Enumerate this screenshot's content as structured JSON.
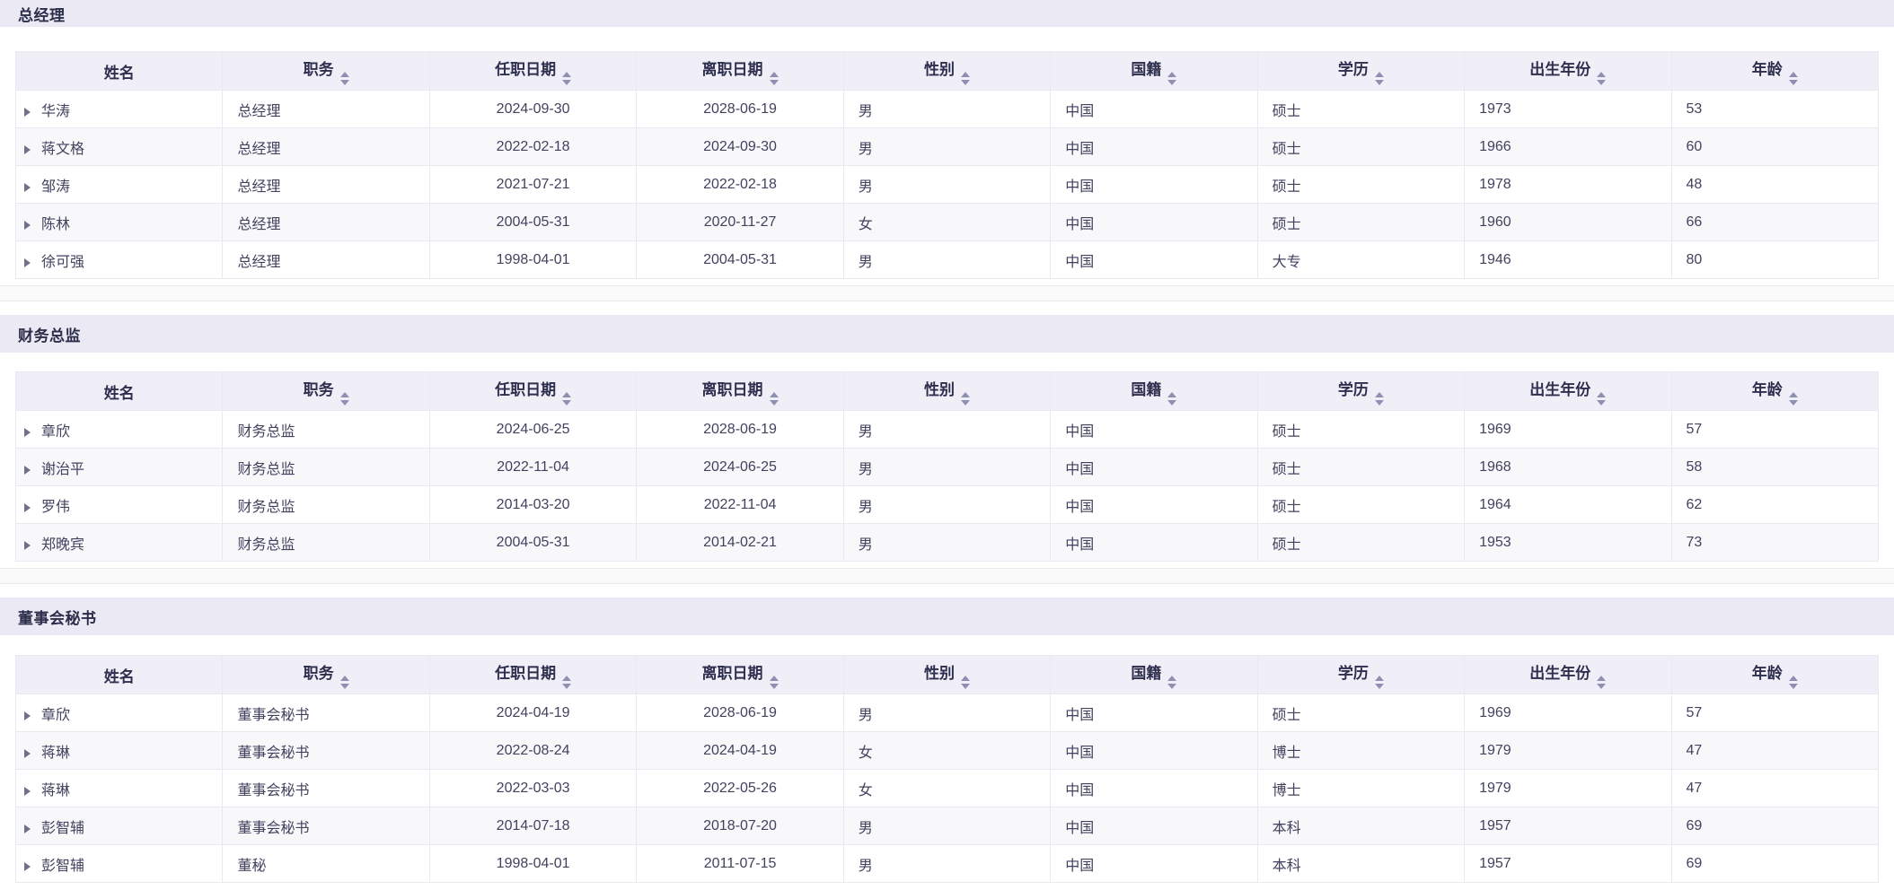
{
  "colors": {
    "section_band_bg": "#ebeaf4",
    "header_bg": "#f0eff8",
    "stripe_bg": "#f8f8fb",
    "divider_bg": "#fafafb",
    "border_color": "#e9e9f1",
    "title_text": "#2c2d4a",
    "header_text": "#2e2f4e",
    "body_text": "#41425e",
    "sort_icon_color": "#8f90b1",
    "expand_icon_color": "#6f7189"
  },
  "icons": {
    "expand": "caret-right",
    "sort": "caret-up-down"
  },
  "columns": [
    {
      "key": "name",
      "label": "姓名",
      "sortable": false
    },
    {
      "key": "position",
      "label": "职务",
      "sortable": true
    },
    {
      "key": "start_date",
      "label": "任职日期",
      "sortable": true
    },
    {
      "key": "end_date",
      "label": "离职日期",
      "sortable": true
    },
    {
      "key": "gender",
      "label": "性别",
      "sortable": true
    },
    {
      "key": "nationality",
      "label": "国籍",
      "sortable": true
    },
    {
      "key": "education",
      "label": "学历",
      "sortable": true
    },
    {
      "key": "birth_year",
      "label": "出生年份",
      "sortable": true
    },
    {
      "key": "age",
      "label": "年龄",
      "sortable": true
    }
  ],
  "sections": [
    {
      "title": "总经理",
      "rows": [
        [
          "华涛",
          "总经理",
          "2024-09-30",
          "2028-06-19",
          "男",
          "中国",
          "硕士",
          "1973",
          "53"
        ],
        [
          "蒋文格",
          "总经理",
          "2022-02-18",
          "2024-09-30",
          "男",
          "中国",
          "硕士",
          "1966",
          "60"
        ],
        [
          "邹涛",
          "总经理",
          "2021-07-21",
          "2022-02-18",
          "男",
          "中国",
          "硕士",
          "1978",
          "48"
        ],
        [
          "陈林",
          "总经理",
          "2004-05-31",
          "2020-11-27",
          "女",
          "中国",
          "硕士",
          "1960",
          "66"
        ],
        [
          "徐可强",
          "总经理",
          "1998-04-01",
          "2004-05-31",
          "男",
          "中国",
          "大专",
          "1946",
          "80"
        ]
      ]
    },
    {
      "title": "财务总监",
      "rows": [
        [
          "章欣",
          "财务总监",
          "2024-06-25",
          "2028-06-19",
          "男",
          "中国",
          "硕士",
          "1969",
          "57"
        ],
        [
          "谢治平",
          "财务总监",
          "2022-11-04",
          "2024-06-25",
          "男",
          "中国",
          "硕士",
          "1968",
          "58"
        ],
        [
          "罗伟",
          "财务总监",
          "2014-03-20",
          "2022-11-04",
          "男",
          "中国",
          "硕士",
          "1964",
          "62"
        ],
        [
          "郑晚宾",
          "财务总监",
          "2004-05-31",
          "2014-02-21",
          "男",
          "中国",
          "硕士",
          "1953",
          "73"
        ]
      ]
    },
    {
      "title": "董事会秘书",
      "rows": [
        [
          "章欣",
          "董事会秘书",
          "2024-04-19",
          "2028-06-19",
          "男",
          "中国",
          "硕士",
          "1969",
          "57"
        ],
        [
          "蒋琳",
          "董事会秘书",
          "2022-08-24",
          "2024-04-19",
          "女",
          "中国",
          "博士",
          "1979",
          "47"
        ],
        [
          "蒋琳",
          "董事会秘书",
          "2022-03-03",
          "2022-05-26",
          "女",
          "中国",
          "博士",
          "1979",
          "47"
        ],
        [
          "彭智辅",
          "董事会秘书",
          "2014-07-18",
          "2018-07-20",
          "男",
          "中国",
          "本科",
          "1957",
          "69"
        ],
        [
          "彭智辅",
          "董秘",
          "1998-04-01",
          "2011-07-15",
          "男",
          "中国",
          "本科",
          "1957",
          "69"
        ]
      ]
    }
  ]
}
